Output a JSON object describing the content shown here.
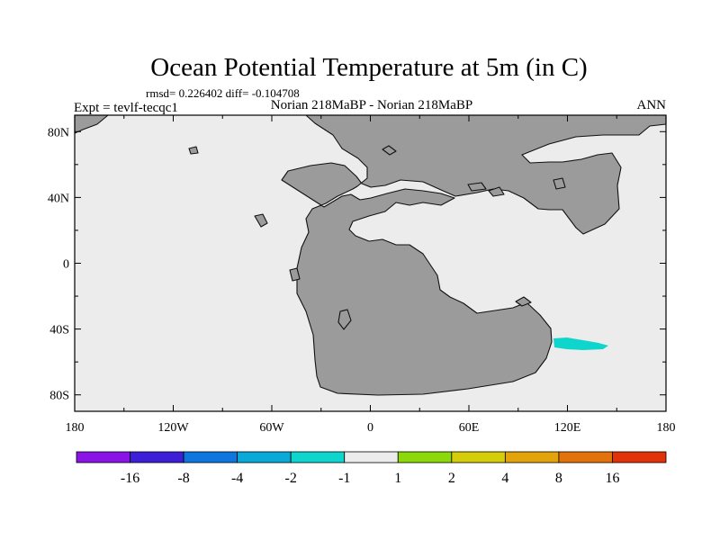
{
  "chart_data": {
    "type": "heatmap",
    "title": "Ocean Potential Temperature at 5m (in C)",
    "stats_line": "rmsd= 0.226402 diff= -0.104708",
    "left_label": "Expt = tevlf-tecqc1",
    "center_label": "Norian 218MaBP - Norian 218MaBP",
    "right_label": "ANN",
    "x_ticks": [
      "180",
      "120W",
      "60W",
      "0",
      "60E",
      "120E",
      "180"
    ],
    "x_tick_values": [
      -180,
      -120,
      -60,
      0,
      60,
      120,
      180
    ],
    "y_ticks": [
      "80N",
      "40N",
      "0",
      "40S",
      "80S"
    ],
    "y_tick_values": [
      80,
      40,
      0,
      -40,
      -80
    ],
    "xlim": [
      -180,
      180
    ],
    "ylim": [
      -90,
      90
    ],
    "colorbar": {
      "colors": [
        "#8a14e6",
        "#3c1fd6",
        "#0f76e0",
        "#0aa9d8",
        "#0fd6cc",
        "#ececec",
        "#8bd90a",
        "#d5cd0a",
        "#e2a40a",
        "#e2730a",
        "#e2320a"
      ],
      "labels": [
        "-16",
        "-8",
        "-4",
        "-2",
        "-1",
        "1",
        "2",
        "4",
        "8",
        "16"
      ]
    },
    "map_colors": {
      "land": "#9b9b9b",
      "ocean_neutral": "#ececec",
      "anomaly": "#0fd6cc"
    },
    "anomaly_region": {
      "label": "-1 to -2 C anomaly",
      "lon_range": [
        115,
        145
      ],
      "lat_range": [
        -50,
        -44
      ]
    }
  }
}
